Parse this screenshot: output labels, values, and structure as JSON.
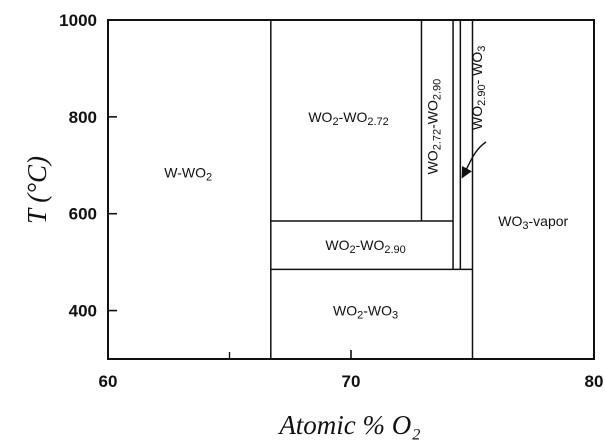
{
  "chart_data": {
    "type": "phase-diagram",
    "xlabel": "Atomic % O₂",
    "ylabel": "T (°C)",
    "xlim": [
      60,
      80
    ],
    "ylim": [
      300,
      1000
    ],
    "xticks": [
      "60",
      "70",
      "80"
    ],
    "yticks": [
      "400",
      "600",
      "800",
      "1000"
    ],
    "boundaries": [
      {
        "name": "W / WO2",
        "x": 66.7,
        "y": [
          300,
          1000
        ]
      },
      {
        "name": "WO2.72",
        "x": 72.9,
        "y": [
          585,
          1000
        ]
      },
      {
        "name": "WO2.90",
        "x": 74.2,
        "y": [
          485,
          1000
        ]
      },
      {
        "name": "WO2.90 right",
        "x": 74.5,
        "y": [
          485,
          1000
        ]
      },
      {
        "name": "WO3",
        "x": 75.0,
        "y": [
          300,
          1000
        ]
      },
      {
        "name": "eutectoid 585",
        "y": 585,
        "x": [
          66.7,
          74.2
        ]
      },
      {
        "name": "eutectoid 485",
        "y": 485,
        "x": [
          66.7,
          75.0
        ]
      }
    ],
    "regions": [
      {
        "base": "W-WO",
        "sub": "2",
        "label_x": 63.3,
        "label_y": 685
      },
      {
        "base": "WO",
        "sub": "2",
        "tail": "-WO",
        "sub2": "2.72",
        "label_x": 69.9,
        "label_y": 800
      },
      {
        "base": "WO",
        "sub": "2",
        "tail": "-WO",
        "sub2": "2.90",
        "label_x": 70.6,
        "label_y": 535
      },
      {
        "base": "WO",
        "sub": "2",
        "tail": "-WO",
        "sub2": "3",
        "label_x": 70.6,
        "label_y": 400
      },
      {
        "base": "WO",
        "sub": "3",
        "tail": "-vapor",
        "label_x": 77.5,
        "label_y": 585
      }
    ],
    "rotated_labels": [
      {
        "base": "WO",
        "sub": "2.72",
        "tail": "-WO",
        "sub2": "2.90",
        "label_x": 73.55,
        "label_y": 780
      },
      {
        "base": "WO",
        "sub": "2.90",
        "tail": "- WO",
        "sub2": "3",
        "label_x": 75.4,
        "label_y": 860
      }
    ]
  }
}
